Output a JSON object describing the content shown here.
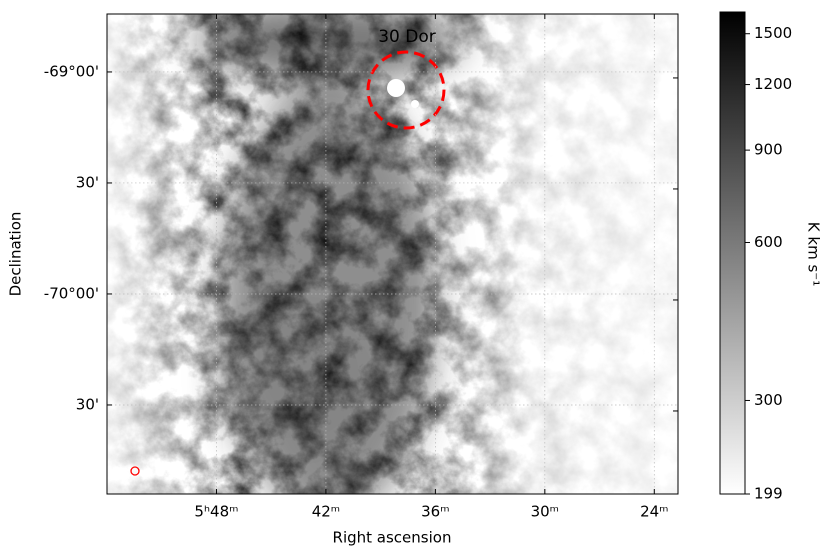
{
  "chart_data": {
    "type": "image",
    "x_label": "Right ascension",
    "y_label": "Declination",
    "xlim": [
      354.0,
      322.7
    ],
    "ylim": [
      -70.901,
      -68.739
    ],
    "xticks": [
      {
        "value": 348,
        "label": "5ʰ48ᵐ"
      },
      {
        "value": 342,
        "label": "42ᵐ"
      },
      {
        "value": 336,
        "label": "36ᵐ"
      },
      {
        "value": 330,
        "label": "30ᵐ"
      },
      {
        "value": 324,
        "label": "24ᵐ"
      }
    ],
    "yticks": [
      {
        "value": -69,
        "label": "-69°00'"
      },
      {
        "value": -69.5,
        "label": "30'"
      },
      {
        "value": -70,
        "label": "-70°00'"
      },
      {
        "value": -70.5,
        "label": "30'"
      }
    ],
    "grid": true,
    "annotation": "30 Dor",
    "annotation_color": "#ff0000",
    "colorbar": {
      "label": "K km s⁻¹",
      "lim": [
        199,
        1650
      ],
      "log": true,
      "ticks": [
        199,
        300,
        600,
        900,
        1200,
        1500
      ]
    }
  }
}
